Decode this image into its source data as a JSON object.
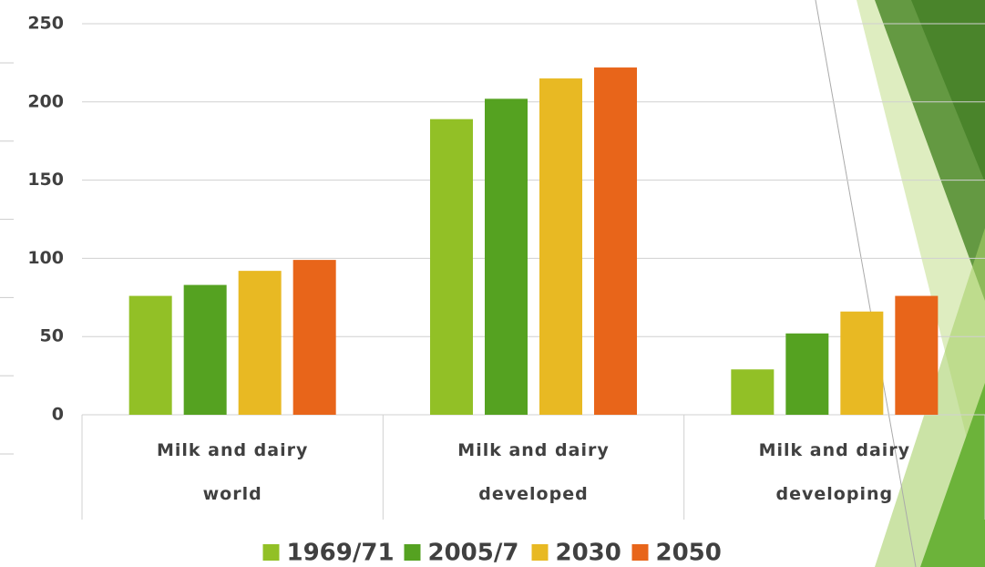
{
  "chart_data": {
    "type": "bar",
    "categories": [
      "Milk and dairy world",
      "Milk and dairy developed",
      "Milk and dairy developing"
    ],
    "series": [
      {
        "name": "1969/71",
        "color": "#92c026",
        "values": [
          76,
          189,
          29
        ]
      },
      {
        "name": "2005/7",
        "color": "#55a221",
        "values": [
          83,
          202,
          52
        ]
      },
      {
        "name": "2030",
        "color": "#e8b923",
        "values": [
          92,
          215,
          66
        ]
      },
      {
        "name": "2050",
        "color": "#e8651a",
        "values": [
          99,
          222,
          76
        ]
      }
    ],
    "ylim": [
      0,
      250
    ],
    "yticks": [
      0,
      50,
      100,
      150,
      200,
      250
    ],
    "grid": true,
    "legend": "bottom"
  }
}
